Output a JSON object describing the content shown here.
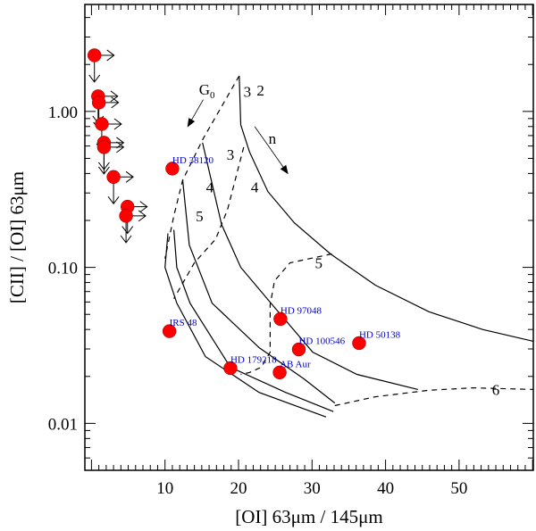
{
  "chart_data": {
    "type": "scatter",
    "title": "",
    "xlabel": "[OI] 63μm / 145μm",
    "ylabel": "[CII] / [OI] 63μm",
    "xlim": [
      -0.9,
      60.1
    ],
    "ylim": [
      0.005,
      4.85
    ],
    "yscale": "log",
    "xticks": [
      10,
      20,
      30,
      40,
      50
    ],
    "xtick_labels": [
      "10",
      "20",
      "30",
      "40",
      "50"
    ],
    "yticks": [
      0.01,
      0.1,
      1
    ],
    "ytick_labels": [
      "0.01",
      "0.10",
      "1.00"
    ],
    "grid": false,
    "colors": {
      "point": "#ff0000",
      "label": "#0000cc",
      "line": "#000000"
    },
    "upper_limits": [
      {
        "x": 0.4,
        "y": 2.29
      },
      {
        "x": 0.9,
        "y": 1.25
      },
      {
        "x": 1.0,
        "y": 1.14
      },
      {
        "x": 1.4,
        "y": 0.83
      },
      {
        "x": 1.7,
        "y": 0.63
      },
      {
        "x": 1.7,
        "y": 0.59
      },
      {
        "x": 3.0,
        "y": 0.38
      },
      {
        "x": 4.9,
        "y": 0.245
      },
      {
        "x": 4.7,
        "y": 0.214
      }
    ],
    "points": [
      {
        "name": "HD 38120",
        "x": 11.0,
        "y": 0.43
      },
      {
        "name": "IRS 48",
        "x": 10.6,
        "y": 0.039
      },
      {
        "name": "HD 179218",
        "x": 18.9,
        "y": 0.0226
      },
      {
        "name": "AB Aur",
        "x": 25.6,
        "y": 0.0212
      },
      {
        "name": "HD 97048",
        "x": 25.7,
        "y": 0.0467
      },
      {
        "name": "HD 100546",
        "x": 28.2,
        "y": 0.0298
      },
      {
        "name": "HD 50138",
        "x": 36.4,
        "y": 0.0327
      }
    ],
    "solid_curves": [
      [
        [
          20.1,
          1.69
        ],
        [
          20.3,
          0.82
        ],
        [
          21.5,
          0.55
        ],
        [
          24.0,
          0.306
        ],
        [
          27.6,
          0.193
        ],
        [
          32.5,
          0.122
        ],
        [
          38.6,
          0.077
        ],
        [
          45.9,
          0.052
        ],
        [
          53.2,
          0.04
        ],
        [
          60.1,
          0.0336
        ]
      ],
      [
        [
          15.1,
          0.63
        ],
        [
          17.7,
          0.188
        ],
        [
          20.3,
          0.1
        ],
        [
          24.6,
          0.0575
        ],
        [
          30.1,
          0.0286
        ],
        [
          36.1,
          0.0206
        ],
        [
          44.4,
          0.0165
        ]
      ],
      [
        [
          12.4,
          0.363
        ],
        [
          13.3,
          0.139
        ],
        [
          16.4,
          0.059
        ],
        [
          22.8,
          0.0306
        ],
        [
          28.9,
          0.0193
        ],
        [
          33.1,
          0.0135
        ]
      ],
      [
        [
          11.2,
          0.174
        ],
        [
          11.6,
          0.1
        ],
        [
          13.4,
          0.059
        ],
        [
          18.9,
          0.0229
        ],
        [
          26.4,
          0.0158
        ],
        [
          32.9,
          0.0119
        ]
      ],
      [
        [
          10.4,
          0.165
        ],
        [
          10.0,
          0.1
        ],
        [
          11.6,
          0.059
        ],
        [
          15.5,
          0.0268
        ],
        [
          22.8,
          0.0158
        ],
        [
          31.9,
          0.011
        ]
      ]
    ],
    "dashed_curves": [
      [
        [
          20.1,
          1.69
        ],
        [
          15.2,
          0.67
        ],
        [
          12.4,
          0.363
        ],
        [
          11.2,
          0.214
        ],
        [
          10.0,
          0.114
        ]
      ],
      [
        [
          20.7,
          0.59
        ],
        [
          18.5,
          0.235
        ],
        [
          16.9,
          0.152
        ],
        [
          14.0,
          0.107
        ],
        [
          11.2,
          0.063
        ]
      ],
      [
        [
          32.7,
          0.122
        ],
        [
          27.0,
          0.107
        ],
        [
          24.9,
          0.082
        ],
        [
          24.3,
          0.0575
        ],
        [
          24.3,
          0.0286
        ],
        [
          23.1,
          0.0229
        ],
        [
          21.5,
          0.0212
        ],
        [
          20.3,
          0.0206
        ]
      ],
      [
        [
          33.1,
          0.013
        ],
        [
          38.6,
          0.0148
        ],
        [
          45.9,
          0.0163
        ],
        [
          51.9,
          0.0169
        ],
        [
          60.1,
          0.0165
        ]
      ]
    ],
    "annotations": [
      {
        "text": "3",
        "x": 21.2,
        "y": 1.34
      },
      {
        "text": "2",
        "x": 23.0,
        "y": 1.37
      },
      {
        "text": "3",
        "x": 18.9,
        "y": 0.53
      },
      {
        "text": "4",
        "x": 16.1,
        "y": 0.327
      },
      {
        "text": "4",
        "x": 22.2,
        "y": 0.327
      },
      {
        "text": "5",
        "x": 14.7,
        "y": 0.214
      },
      {
        "text": "5",
        "x": 30.9,
        "y": 0.107
      },
      {
        "text": "6",
        "x": 55.0,
        "y": 0.0165
      },
      {
        "text": "n",
        "x": 24.6,
        "y": 0.67
      }
    ],
    "g0_label": {
      "text": "G",
      "sub": "0",
      "x": 15.7,
      "y": 1.39
    },
    "arrows": [
      {
        "name": "g0",
        "from": [
          15.2,
          1.19
        ],
        "to": [
          13.1,
          0.8
        ]
      },
      {
        "name": "n",
        "from": [
          22.2,
          0.8
        ],
        "to": [
          26.7,
          0.4
        ]
      }
    ]
  }
}
